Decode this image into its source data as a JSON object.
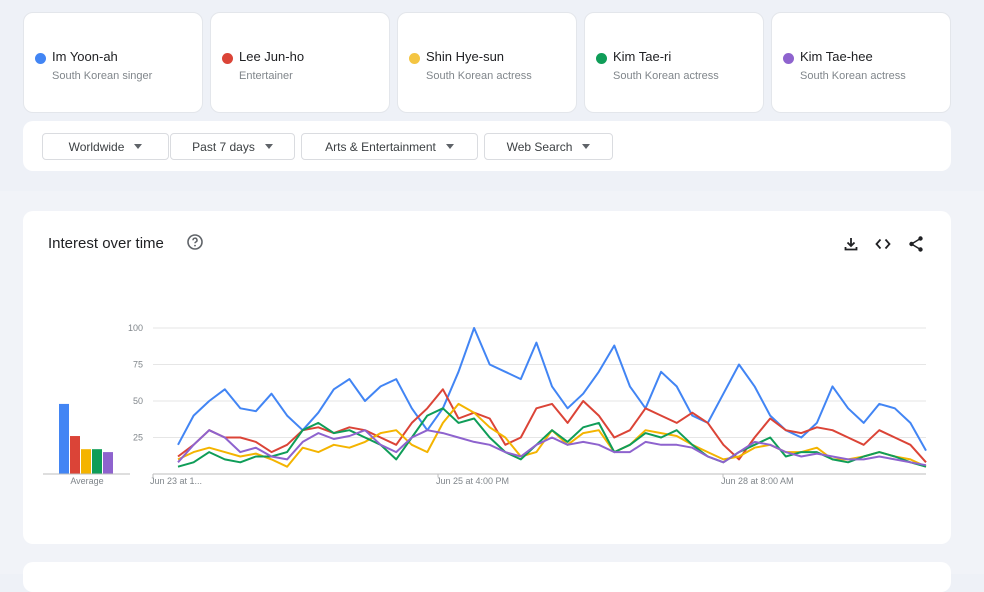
{
  "terms": [
    {
      "name": "Im Yoon-ah",
      "desc": "South Korean singer",
      "color": "#4285f4"
    },
    {
      "name": "Lee Jun-ho",
      "desc": "Entertainer",
      "color": "#db4437"
    },
    {
      "name": "Shin Hye-sun",
      "desc": "South Korean actress",
      "color": "#f4b400"
    },
    {
      "name": "Kim Tae-ri",
      "desc": "South Korean actress",
      "color": "#0f9d58"
    },
    {
      "name": "Kim Tae-hee",
      "desc": "South Korean actress",
      "color": "#8e63ce"
    }
  ],
  "filters": {
    "region": "Worldwide",
    "time": "Past 7 days",
    "category": "Arts & Entertainment",
    "search_type": "Web Search"
  },
  "chart": {
    "title": "Interest over time",
    "icons": [
      "help-icon",
      "download-icon",
      "embed-icon",
      "share-icon"
    ]
  },
  "chart_data": {
    "type": "line",
    "ylim": [
      0,
      100
    ],
    "yticks": [
      "100",
      "75",
      "50",
      "25"
    ],
    "xticks": [
      "Jun 23 at 1...",
      "Jun 25 at 4:00 PM",
      "Jun 28 at 8:00 AM"
    ],
    "average_label": "Average",
    "averages": [
      48,
      26,
      17,
      17,
      15
    ],
    "series": [
      {
        "name": "Im Yoon-ah",
        "color": "#4285f4",
        "values": [
          20,
          40,
          50,
          58,
          45,
          43,
          55,
          40,
          30,
          42,
          58,
          65,
          50,
          60,
          65,
          45,
          30,
          45,
          70,
          100,
          75,
          70,
          65,
          90,
          60,
          45,
          55,
          70,
          88,
          60,
          45,
          70,
          60,
          40,
          35,
          55,
          75,
          60,
          40,
          30,
          25,
          35,
          60,
          45,
          35,
          48,
          45,
          35,
          16
        ]
      },
      {
        "name": "Lee Jun-ho",
        "color": "#db4437",
        "values": [
          12,
          20,
          30,
          25,
          25,
          22,
          15,
          20,
          30,
          32,
          28,
          32,
          30,
          25,
          20,
          35,
          45,
          58,
          38,
          42,
          38,
          20,
          25,
          45,
          48,
          35,
          50,
          40,
          25,
          30,
          45,
          40,
          35,
          42,
          35,
          20,
          10,
          25,
          38,
          30,
          28,
          32,
          30,
          25,
          20,
          30,
          25,
          20,
          8
        ]
      },
      {
        "name": "Shin Hye-sun",
        "color": "#f4b400",
        "values": [
          10,
          15,
          18,
          15,
          12,
          14,
          10,
          5,
          18,
          15,
          20,
          18,
          22,
          28,
          30,
          20,
          15,
          35,
          48,
          42,
          32,
          25,
          12,
          15,
          30,
          20,
          28,
          30,
          15,
          20,
          30,
          28,
          26,
          20,
          15,
          10,
          12,
          18,
          20,
          15,
          15,
          18,
          10,
          10,
          12,
          15,
          12,
          10,
          5
        ]
      },
      {
        "name": "Kim Tae-ri",
        "color": "#0f9d58",
        "values": [
          5,
          8,
          15,
          10,
          8,
          12,
          12,
          15,
          30,
          35,
          28,
          30,
          25,
          20,
          10,
          25,
          40,
          45,
          35,
          38,
          25,
          15,
          10,
          20,
          30,
          22,
          32,
          35,
          15,
          20,
          28,
          25,
          30,
          20,
          12,
          8,
          15,
          20,
          25,
          12,
          15,
          15,
          10,
          8,
          12,
          15,
          12,
          8,
          5
        ]
      },
      {
        "name": "Kim Tae-hee",
        "color": "#8e63ce",
        "values": [
          8,
          20,
          30,
          25,
          15,
          18,
          12,
          10,
          22,
          28,
          24,
          26,
          30,
          20,
          15,
          25,
          30,
          28,
          25,
          22,
          20,
          15,
          12,
          20,
          25,
          20,
          22,
          20,
          15,
          15,
          22,
          20,
          20,
          18,
          12,
          8,
          15,
          22,
          20,
          15,
          12,
          14,
          12,
          10,
          10,
          12,
          10,
          8,
          6
        ]
      }
    ]
  }
}
